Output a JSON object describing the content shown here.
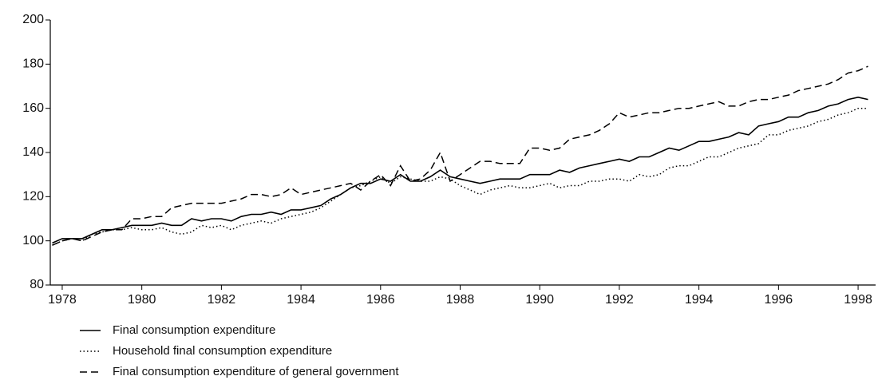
{
  "chart_data": {
    "type": "line",
    "x": [
      1977.75,
      1978,
      1978.25,
      1978.5,
      1978.75,
      1979,
      1979.25,
      1979.5,
      1979.75,
      1980,
      1980.25,
      1980.5,
      1980.75,
      1981,
      1981.25,
      1981.5,
      1981.75,
      1982,
      1982.25,
      1982.5,
      1982.75,
      1983,
      1983.25,
      1983.5,
      1983.75,
      1984,
      1984.25,
      1984.5,
      1984.75,
      1985,
      1985.25,
      1985.5,
      1985.75,
      1986,
      1986.25,
      1986.5,
      1986.75,
      1987,
      1987.25,
      1987.5,
      1987.75,
      1988,
      1988.25,
      1988.5,
      1988.75,
      1989,
      1989.25,
      1989.5,
      1989.75,
      1990,
      1990.25,
      1990.5,
      1990.75,
      1991,
      1991.25,
      1991.5,
      1991.75,
      1992,
      1992.25,
      1992.5,
      1992.75,
      1993,
      1993.25,
      1993.5,
      1993.75,
      1994,
      1994.25,
      1994.5,
      1994.75,
      1995,
      1995.25,
      1995.5,
      1995.75,
      1996,
      1996.25,
      1996.5,
      1996.75,
      1997,
      1997.25,
      1997.5,
      1997.75,
      1998,
      1998.25
    ],
    "series": [
      {
        "name": "Final consumption expenditure",
        "color": "#000000",
        "style": "solid",
        "values": [
          99,
          101,
          101,
          101,
          103,
          105,
          105,
          106,
          107,
          107,
          107,
          108,
          107,
          107,
          110,
          109,
          110,
          110,
          109,
          111,
          112,
          112,
          113,
          112,
          114,
          114,
          115,
          116,
          119,
          121,
          124,
          126,
          126,
          128,
          127,
          130,
          127,
          127,
          129,
          132,
          129,
          128,
          127,
          126,
          127,
          128,
          128,
          128,
          130,
          130,
          130,
          132,
          131,
          133,
          134,
          135,
          136,
          137,
          136,
          138,
          138,
          140,
          142,
          141,
          143,
          145,
          145,
          146,
          147,
          149,
          148,
          152,
          153,
          154,
          156,
          156,
          158,
          159,
          161,
          162,
          164,
          165,
          164
        ]
      },
      {
        "name": "Household final consumption expenditure",
        "color": "#000000",
        "style": "dotted",
        "values": [
          98,
          100,
          101,
          100,
          103,
          104,
          105,
          105,
          106,
          105,
          105,
          106,
          104,
          103,
          104,
          107,
          106,
          107,
          105,
          107,
          108,
          109,
          108,
          110,
          111,
          112,
          113,
          115,
          118,
          121,
          124,
          125,
          127,
          129,
          126,
          129,
          128,
          127,
          127,
          129,
          128,
          125,
          123,
          121,
          123,
          124,
          125,
          124,
          124,
          125,
          126,
          124,
          125,
          125,
          127,
          127,
          128,
          128,
          127,
          130,
          129,
          130,
          133,
          134,
          134,
          136,
          138,
          138,
          140,
          142,
          143,
          144,
          148,
          148,
          150,
          151,
          152,
          154,
          155,
          157,
          158,
          160,
          160
        ]
      },
      {
        "name": "Final consumption expenditure of general government",
        "color": "#000000",
        "style": "dashed",
        "values": [
          98,
          100,
          101,
          100,
          102,
          104,
          105,
          105,
          110,
          110,
          111,
          111,
          115,
          116,
          117,
          117,
          117,
          117,
          118,
          119,
          121,
          121,
          120,
          121,
          124,
          121,
          122,
          123,
          124,
          125,
          126,
          123,
          127,
          130,
          125,
          134,
          127,
          128,
          132,
          140,
          127,
          130,
          133,
          136,
          136,
          135,
          135,
          135,
          142,
          142,
          141,
          142,
          146,
          147,
          148,
          150,
          153,
          158,
          156,
          157,
          158,
          158,
          159,
          160,
          160,
          161,
          162,
          163,
          161,
          161,
          163,
          164,
          164,
          165,
          166,
          168,
          169,
          170,
          171,
          173,
          176,
          177,
          179
        ]
      }
    ],
    "xlim": [
      1977.7,
      1998.44
    ],
    "xticks": [
      1978,
      1980,
      1982,
      1984,
      1986,
      1988,
      1990,
      1992,
      1994,
      1996,
      1998
    ],
    "ylim": [
      80,
      200
    ],
    "yticks": [
      80,
      100,
      120,
      140,
      160,
      180,
      200
    ]
  }
}
